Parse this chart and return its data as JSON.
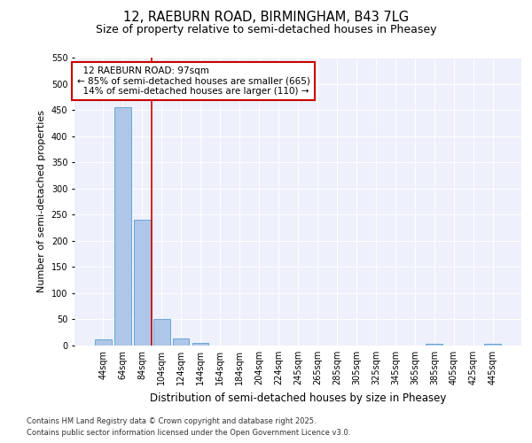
{
  "title1": "12, RAEBURN ROAD, BIRMINGHAM, B43 7LG",
  "title2": "Size of property relative to semi-detached houses in Pheasey",
  "xlabel": "Distribution of semi-detached houses by size in Pheasey",
  "ylabel": "Number of semi-detached properties",
  "bins": [
    "44sqm",
    "64sqm",
    "84sqm",
    "104sqm",
    "124sqm",
    "144sqm",
    "164sqm",
    "184sqm",
    "204sqm",
    "224sqm",
    "245sqm",
    "265sqm",
    "285sqm",
    "305sqm",
    "325sqm",
    "345sqm",
    "365sqm",
    "385sqm",
    "405sqm",
    "425sqm",
    "445sqm"
  ],
  "values": [
    12,
    455,
    240,
    50,
    14,
    5,
    0,
    0,
    0,
    0,
    0,
    0,
    0,
    0,
    0,
    0,
    0,
    3,
    0,
    0,
    3
  ],
  "bar_color": "#aec6e8",
  "bar_edge_color": "#5a9fd4",
  "vline_x": 2.5,
  "annotation_box_color": "#cc0000",
  "vline_color": "#cc0000",
  "ylim": [
    0,
    550
  ],
  "yticks": [
    0,
    50,
    100,
    150,
    200,
    250,
    300,
    350,
    400,
    450,
    500,
    550
  ],
  "property_label": "12 RAEBURN ROAD: 97sqm",
  "pct_smaller": 85,
  "count_smaller": 665,
  "pct_larger": 14,
  "count_larger": 110,
  "footnote1": "Contains HM Land Registry data © Crown copyright and database right 2025.",
  "footnote2": "Contains public sector information licensed under the Open Government Licence v3.0.",
  "bg_color": "#eef1fb",
  "fig_bg_color": "#ffffff",
  "title1_fontsize": 10.5,
  "title2_fontsize": 9,
  "ylabel_fontsize": 8,
  "xlabel_fontsize": 8.5,
  "tick_fontsize": 7,
  "ann_fontsize": 7.5,
  "footnote_fontsize": 6
}
